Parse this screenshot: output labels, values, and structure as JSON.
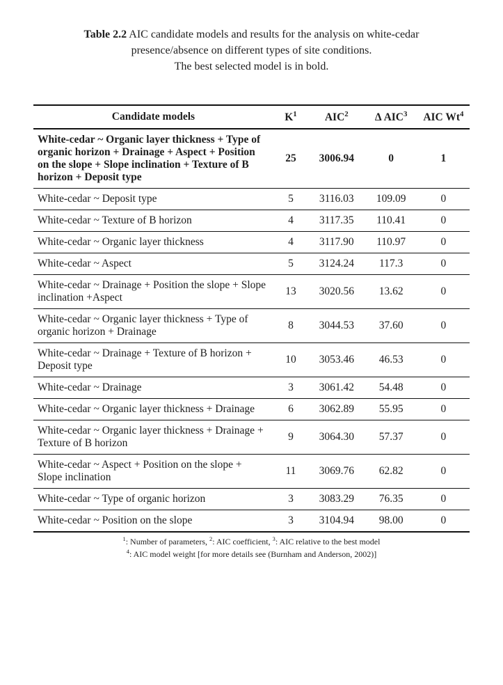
{
  "caption": {
    "lead": "Table 2.2",
    "line1_rest": " AIC candidate models and results for the analysis on white-cedar",
    "line2": "presence/absence on different types of site conditions.",
    "line3": "The best selected model is in bold."
  },
  "table": {
    "columns": {
      "model": "Candidate models",
      "k": "K",
      "k_sup": "1",
      "aic": "AIC",
      "aic_sup": "2",
      "daic": "Δ AIC",
      "daic_sup": "3",
      "wt": "AIC Wt",
      "wt_sup": "4"
    },
    "rows": [
      {
        "model": "White-cedar ~ Organic layer thickness + Type of organic horizon + Drainage + Aspect + Position on the slope + Slope inclination + Texture of B horizon + Deposit type",
        "k": "25",
        "aic": "3006.94",
        "daic": "0",
        "wt": "1",
        "bold": true
      },
      {
        "model": "White-cedar ~  Deposit type",
        "k": "5",
        "aic": "3116.03",
        "daic": "109.09",
        "wt": "0"
      },
      {
        "model": "White-cedar ~ Texture of B horizon",
        "k": "4",
        "aic": "3117.35",
        "daic": "110.41",
        "wt": "0"
      },
      {
        "model": "White-cedar ~ Organic layer thickness",
        "k": "4",
        "aic": "3117.90",
        "daic": "110.97",
        "wt": "0"
      },
      {
        "model": "White-cedar ~ Aspect",
        "k": "5",
        "aic": "3124.24",
        "daic": "117.3",
        "wt": "0"
      },
      {
        "model": "White-cedar ~ Drainage + Position the slope + Slope inclination +Aspect",
        "k": "13",
        "aic": "3020.56",
        "daic": "13.62",
        "wt": "0"
      },
      {
        "model": "White-cedar ~ Organic layer thickness + Type of organic horizon + Drainage",
        "k": "8",
        "aic": "3044.53",
        "daic": "37.60",
        "wt": "0"
      },
      {
        "model": "White-cedar ~ Drainage + Texture of B horizon + Deposit type",
        "k": "10",
        "aic": "3053.46",
        "daic": "46.53",
        "wt": "0"
      },
      {
        "model": "White-cedar ~ Drainage",
        "k": "3",
        "aic": "3061.42",
        "daic": "54.48",
        "wt": "0"
      },
      {
        "model": "White-cedar ~  Organic layer thickness + Drainage",
        "k": "6",
        "aic": "3062.89",
        "daic": "55.95",
        "wt": "0"
      },
      {
        "model": "White-cedar ~ Organic layer thickness + Drainage + Texture of B horizon",
        "k": "9",
        "aic": "3064.30",
        "daic": "57.37",
        "wt": "0"
      },
      {
        "model": "White-cedar ~ Aspect + Position on the slope + Slope inclination",
        "k": "11",
        "aic": "3069.76",
        "daic": "62.82",
        "wt": "0"
      },
      {
        "model": "White-cedar ~ Type of organic horizon",
        "k": "3",
        "aic": "3083.29",
        "daic": "76.35",
        "wt": "0"
      },
      {
        "model": "White-cedar ~ Position on the slope",
        "k": "3",
        "aic": "3104.94",
        "daic": "98.00",
        "wt": "0"
      }
    ]
  },
  "footnotes": {
    "line1_pre": "",
    "sup1": "1",
    "t1": ": Number of parameters, ",
    "sup2": "2",
    "t2": ": AIC coefficient, ",
    "sup3": "3",
    "t3": ": AIC relative to the best model",
    "sup4": "4",
    "t4": ": AIC model weight [for more details see (Burnham and Anderson, 2002)]"
  }
}
